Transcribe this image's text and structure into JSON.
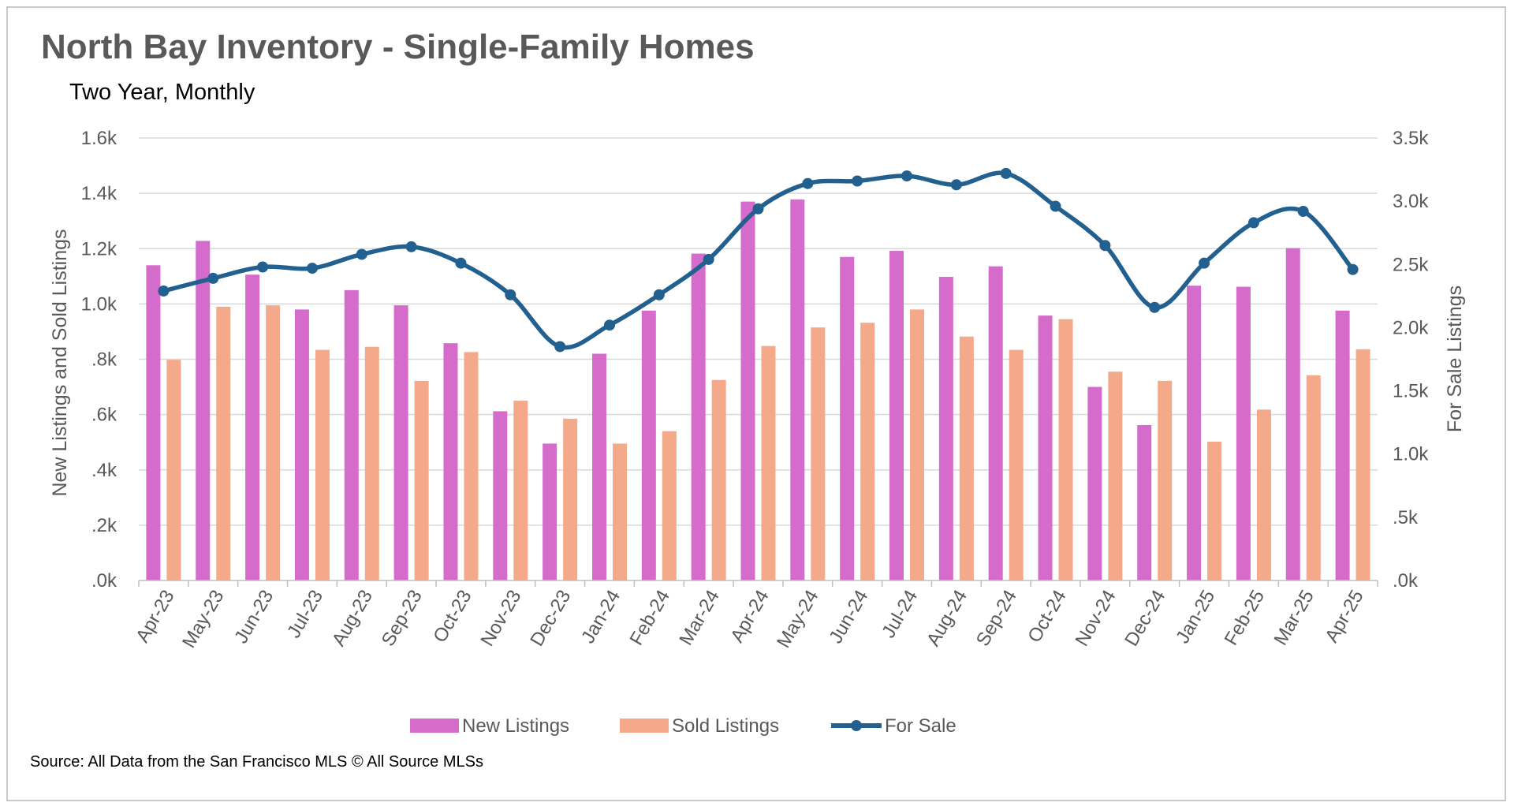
{
  "chart_data": {
    "type": "bar",
    "title": "North Bay Inventory - Single-Family Homes",
    "subtitle": "Two Year, Monthly",
    "ylabel": "New Listings and Sold Listings",
    "y2label": "For Sale Listings",
    "ylim": [
      0,
      1600
    ],
    "y2lim": [
      0,
      3500
    ],
    "yticks": [
      ".0k",
      ".2k",
      ".4k",
      ".6k",
      ".8k",
      "1.0k",
      "1.2k",
      "1.4k",
      "1.6k"
    ],
    "y2ticks": [
      ".0k",
      ".5k",
      "1.0k",
      "1.5k",
      "2.0k",
      "2.5k",
      "3.0k",
      "3.5k"
    ],
    "grid": true,
    "legend": "bottom",
    "categories": [
      "Apr-23",
      "May-23",
      "Jun-23",
      "Jul-23",
      "Aug-23",
      "Sep-23",
      "Oct-23",
      "Nov-23",
      "Dec-23",
      "Jan-24",
      "Feb-24",
      "Mar-24",
      "Apr-24",
      "May-24",
      "Jun-24",
      "Jul-24",
      "Aug-24",
      "Sep-24",
      "Oct-24",
      "Nov-24",
      "Dec-24",
      "Jan-25",
      "Feb-25",
      "Mar-25",
      "Apr-25"
    ],
    "series": [
      {
        "name": "New Listings",
        "type": "bar",
        "axis": "left",
        "color": "#d56ccc",
        "values": [
          1140,
          1228,
          1106,
          980,
          1050,
          995,
          858,
          612,
          495,
          820,
          976,
          1182,
          1370,
          1378,
          1170,
          1192,
          1098,
          1136,
          958,
          700,
          562,
          1066,
          1062,
          1202,
          976
        ]
      },
      {
        "name": "Sold Listings",
        "type": "bar",
        "axis": "left",
        "color": "#f4a98a",
        "values": [
          798,
          990,
          995,
          834,
          845,
          722,
          826,
          650,
          585,
          495,
          540,
          725,
          848,
          915,
          932,
          980,
          882,
          834,
          945,
          755,
          722,
          502,
          618,
          742,
          836
        ]
      },
      {
        "name": "For Sale",
        "type": "line",
        "axis": "right",
        "color": "#22608f",
        "values": [
          2290,
          2390,
          2480,
          2470,
          2580,
          2640,
          2510,
          2260,
          1850,
          2020,
          2260,
          2540,
          2940,
          3140,
          3160,
          3200,
          3130,
          3220,
          2960,
          2650,
          2160,
          2510,
          2830,
          2920,
          2460
        ]
      }
    ]
  },
  "source": "Source: All Data from the San Francisco MLS © All Source MLSs"
}
